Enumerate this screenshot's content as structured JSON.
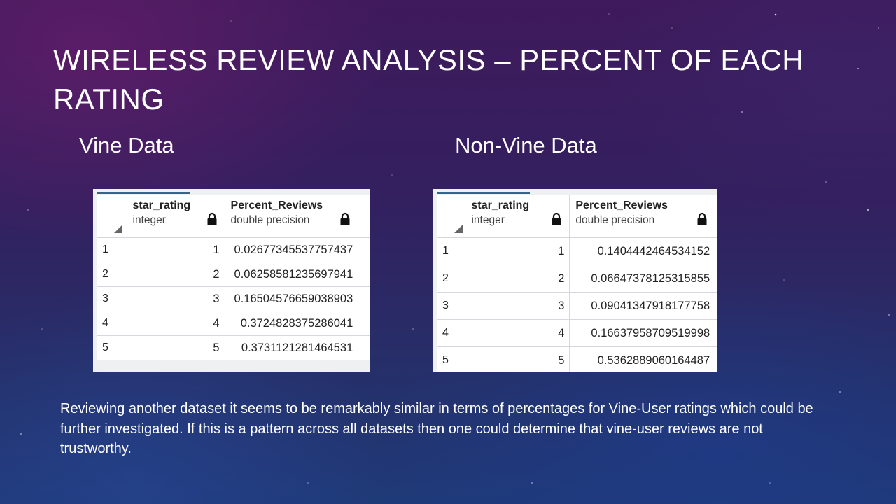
{
  "slide": {
    "title": "WIRELESS REVIEW ANALYSIS – PERCENT OF EACH RATING",
    "body": "Reviewing another dataset it seems to be remarkably similar in terms of percentages for Vine-User ratings which could be further investigated. If this is a pattern across all datasets then one could determine that vine-user reviews are not trustworthy."
  },
  "vine": {
    "heading": "Vine Data",
    "columns": [
      {
        "name": "star_rating",
        "type": "integer"
      },
      {
        "name": "Percent_Reviews",
        "type": "double precision"
      }
    ],
    "rows": [
      {
        "num": "1",
        "star": "1",
        "pct": "0.02677345537757437"
      },
      {
        "num": "2",
        "star": "2",
        "pct": "0.06258581235697941"
      },
      {
        "num": "3",
        "star": "3",
        "pct": "0.16504576659038903"
      },
      {
        "num": "4",
        "star": "4",
        "pct": "0.3724828375286041"
      },
      {
        "num": "5",
        "star": "5",
        "pct": "0.3731121281464531"
      }
    ]
  },
  "nonvine": {
    "heading": "Non-Vine Data",
    "columns": [
      {
        "name": "star_rating",
        "type": "integer"
      },
      {
        "name": "Percent_Reviews",
        "type": "double precision"
      }
    ],
    "rows": [
      {
        "num": "1",
        "star": "1",
        "pct": "0.1404442464534152"
      },
      {
        "num": "2",
        "star": "2",
        "pct": "0.06647378125315855"
      },
      {
        "num": "3",
        "star": "3",
        "pct": "0.09041347918177758"
      },
      {
        "num": "4",
        "star": "4",
        "pct": "0.16637958709519998"
      },
      {
        "num": "5",
        "star": "5",
        "pct": "0.5362889060164487"
      }
    ]
  },
  "colors": {
    "lock": "#111111",
    "tab_accent": "#326690"
  },
  "icons": {
    "lock": "lock-icon",
    "sort_corner": "corner-triangle-icon"
  }
}
